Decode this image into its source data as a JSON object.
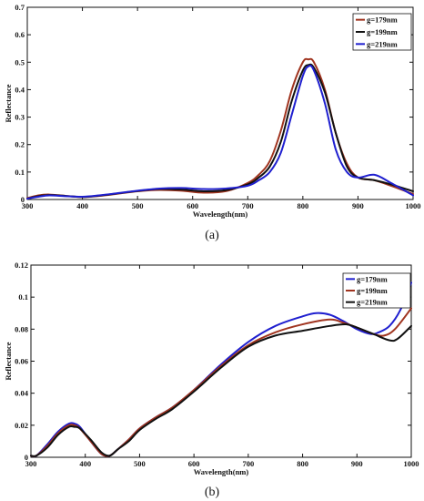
{
  "chart_data": [
    {
      "type": "line",
      "caption": "(a)",
      "xlabel": "Wavelength(nm)",
      "ylabel": "Reflectance",
      "xlim": [
        300,
        1000
      ],
      "ylim": [
        0,
        0.7
      ],
      "xticks": [
        300,
        400,
        500,
        600,
        700,
        800,
        900,
        1000
      ],
      "yticks": [
        0,
        0.1,
        0.2,
        0.3,
        0.4,
        0.5,
        0.6,
        0.7
      ],
      "tick_labels_x": [
        "300",
        "400",
        "500",
        "600",
        "700",
        "800",
        "900",
        "1000"
      ],
      "tick_labels_y": [
        "0",
        "0.1",
        "0.2",
        "0.3",
        "0.4",
        "0.5",
        "0.6",
        "0.7"
      ],
      "grid": false,
      "legend": "top-right",
      "series": [
        {
          "name": "g=179nm",
          "color": "#a0341f",
          "x": [
            300,
            320,
            340,
            370,
            400,
            430,
            460,
            500,
            540,
            580,
            620,
            660,
            700,
            720,
            740,
            760,
            780,
            800,
            810,
            820,
            840,
            860,
            880,
            900,
            930,
            960,
            1000
          ],
          "y": [
            0.005,
            0.015,
            0.018,
            0.013,
            0.009,
            0.013,
            0.02,
            0.03,
            0.035,
            0.032,
            0.025,
            0.03,
            0.06,
            0.09,
            0.14,
            0.25,
            0.4,
            0.5,
            0.51,
            0.5,
            0.4,
            0.24,
            0.13,
            0.08,
            0.07,
            0.05,
            0.02
          ]
        },
        {
          "name": "g=199nm",
          "color": "#111111",
          "x": [
            300,
            320,
            340,
            370,
            400,
            430,
            460,
            500,
            540,
            580,
            620,
            660,
            700,
            720,
            740,
            760,
            780,
            800,
            810,
            820,
            840,
            860,
            880,
            900,
            930,
            960,
            1000
          ],
          "y": [
            0.003,
            0.012,
            0.016,
            0.013,
            0.009,
            0.014,
            0.021,
            0.031,
            0.038,
            0.036,
            0.03,
            0.034,
            0.055,
            0.08,
            0.12,
            0.21,
            0.36,
            0.47,
            0.49,
            0.48,
            0.39,
            0.24,
            0.12,
            0.08,
            0.07,
            0.055,
            0.03
          ]
        },
        {
          "name": "g=219nm",
          "color": "#1f1fcf",
          "x": [
            300,
            320,
            340,
            370,
            400,
            430,
            460,
            500,
            540,
            580,
            620,
            660,
            700,
            720,
            740,
            760,
            780,
            800,
            810,
            820,
            840,
            860,
            880,
            900,
            930,
            960,
            1000
          ],
          "y": [
            0.003,
            0.01,
            0.015,
            0.012,
            0.01,
            0.015,
            0.022,
            0.032,
            0.04,
            0.042,
            0.038,
            0.04,
            0.05,
            0.07,
            0.1,
            0.17,
            0.31,
            0.45,
            0.485,
            0.47,
            0.35,
            0.18,
            0.1,
            0.08,
            0.09,
            0.06,
            0.015
          ]
        }
      ]
    },
    {
      "type": "line",
      "caption": "(b)",
      "xlabel": "Wavelength(nm)",
      "ylabel": "Reflectance",
      "xlim": [
        300,
        1000
      ],
      "ylim": [
        0,
        0.12
      ],
      "xticks": [
        300,
        400,
        500,
        600,
        700,
        800,
        900,
        1000
      ],
      "yticks": [
        0,
        0.02,
        0.04,
        0.06,
        0.08,
        0.1,
        0.12
      ],
      "tick_labels_x": [
        "300",
        "400",
        "500",
        "600",
        "700",
        "800",
        "900",
        "1000"
      ],
      "tick_labels_y": [
        "0",
        "0.02",
        "0.04",
        "0.06",
        "0.08",
        "0.1",
        "0.12"
      ],
      "grid": false,
      "legend": "top-right",
      "series": [
        {
          "name": "g=179nm",
          "color": "#1f1fcf",
          "x": [
            300,
            310,
            330,
            350,
            370,
            380,
            390,
            410,
            430,
            445,
            460,
            480,
            500,
            530,
            560,
            600,
            650,
            700,
            750,
            800,
            825,
            850,
            875,
            900,
            925,
            940,
            960,
            980,
            1000
          ],
          "y": [
            0.001,
            0.001,
            0.008,
            0.016,
            0.021,
            0.021,
            0.019,
            0.01,
            0.002,
            0.001,
            0.005,
            0.011,
            0.018,
            0.025,
            0.031,
            0.042,
            0.058,
            0.072,
            0.082,
            0.088,
            0.09,
            0.089,
            0.085,
            0.08,
            0.077,
            0.078,
            0.082,
            0.092,
            0.109
          ]
        },
        {
          "name": "g=199nm",
          "color": "#a0341f",
          "x": [
            300,
            310,
            330,
            350,
            370,
            380,
            390,
            410,
            430,
            445,
            460,
            480,
            500,
            530,
            560,
            600,
            650,
            700,
            750,
            800,
            850,
            875,
            900,
            930,
            950,
            970,
            1000
          ],
          "y": [
            0.001,
            0.001,
            0.007,
            0.015,
            0.02,
            0.02,
            0.018,
            0.01,
            0.002,
            0.001,
            0.005,
            0.011,
            0.018,
            0.025,
            0.031,
            0.042,
            0.057,
            0.07,
            0.078,
            0.083,
            0.086,
            0.084,
            0.081,
            0.077,
            0.076,
            0.08,
            0.093
          ]
        },
        {
          "name": "g=219nm",
          "color": "#111111",
          "x": [
            300,
            310,
            330,
            350,
            370,
            380,
            390,
            410,
            430,
            445,
            460,
            480,
            500,
            530,
            560,
            600,
            650,
            700,
            750,
            800,
            850,
            880,
            900,
            930,
            960,
            975,
            1000
          ],
          "y": [
            0.001,
            0.001,
            0.006,
            0.014,
            0.019,
            0.019,
            0.018,
            0.011,
            0.003,
            0.001,
            0.005,
            0.01,
            0.017,
            0.024,
            0.03,
            0.041,
            0.056,
            0.069,
            0.076,
            0.079,
            0.082,
            0.083,
            0.081,
            0.077,
            0.073,
            0.074,
            0.082
          ]
        }
      ]
    }
  ]
}
